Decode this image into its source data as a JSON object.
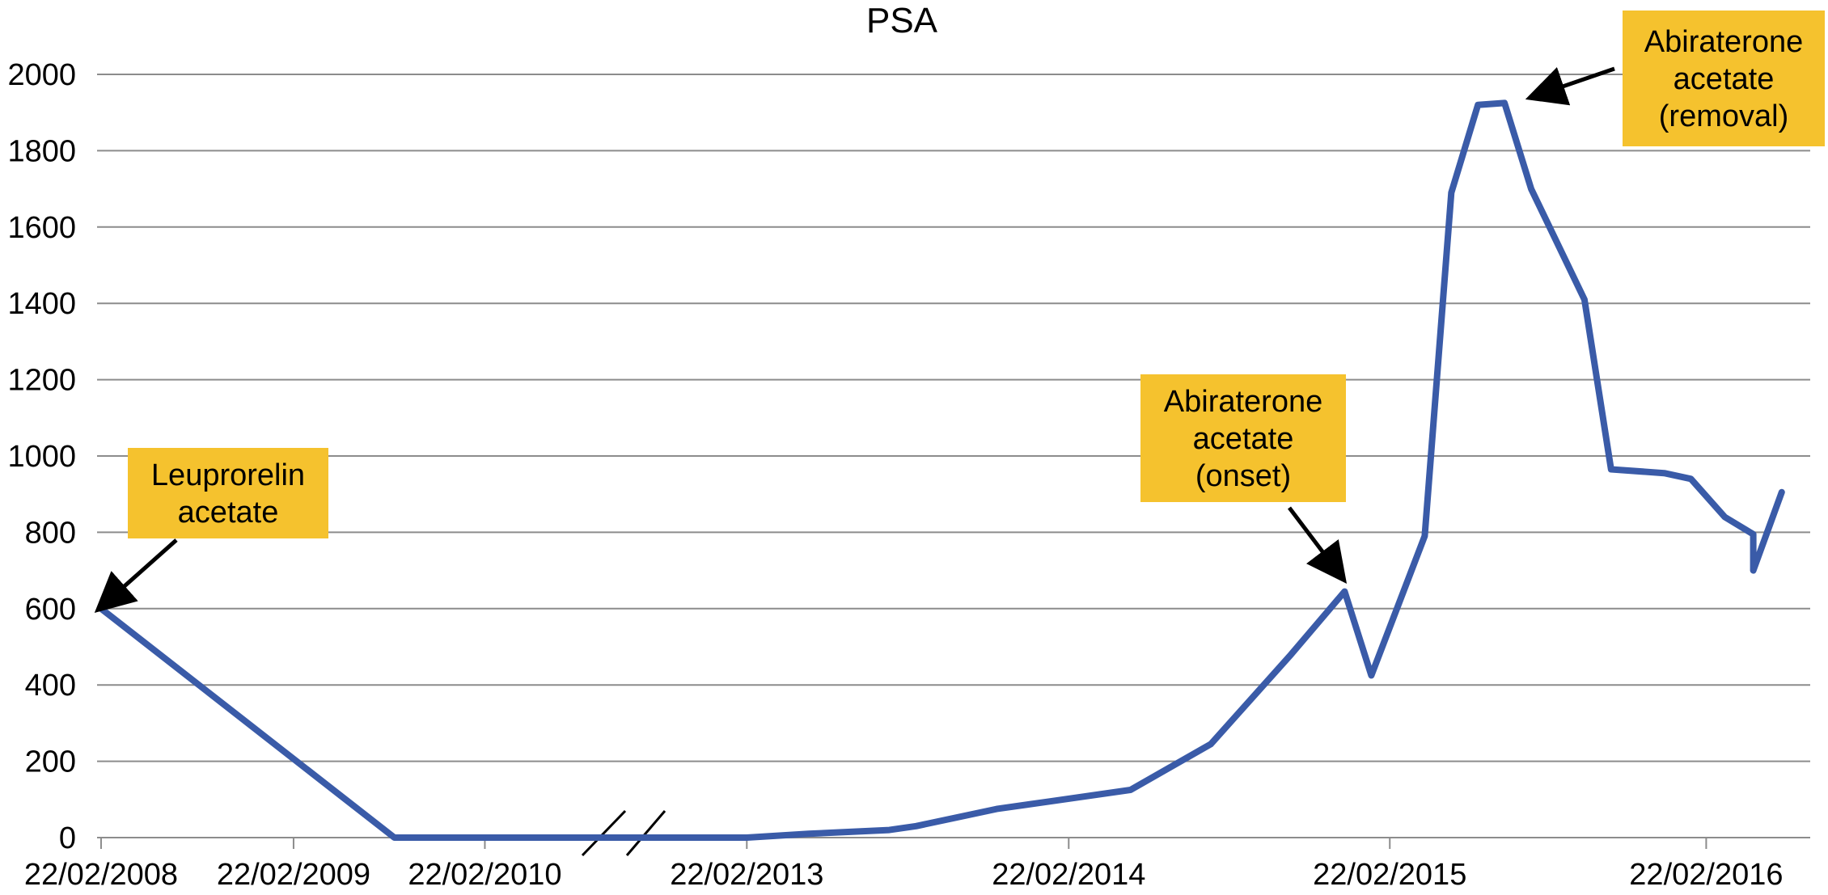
{
  "chart_data": {
    "type": "line",
    "title": "PSA",
    "xlabel": "",
    "ylabel": "",
    "ylim": [
      0,
      2000
    ],
    "yticks": [
      "0",
      "200",
      "400",
      "600",
      "800",
      "1000",
      "1200",
      "1400",
      "1600",
      "1800",
      "2000"
    ],
    "xticks": [
      "22/02/2008",
      "22/02/2009",
      "22/02/2010",
      "22/02/2013",
      "22/02/2014",
      "22/02/2015",
      "22/02/2016"
    ],
    "axis_break": "between 22/02/2010 and 22/02/2013",
    "grid": "horizontal",
    "line_color": "#3a5ba8",
    "annotation_color": "#f5c22e",
    "series": [
      {
        "values": [
          {
            "x": "22/02/2008",
            "y": 600
          },
          {
            "x": "2009-09",
            "y": 0
          },
          {
            "x": "22/02/2010",
            "y": 0
          },
          {
            "x": "2010-11",
            "y": 0
          },
          {
            "x": "22/02/2013",
            "y": 0
          },
          {
            "x": "2013-05",
            "y": 10
          },
          {
            "x": "2013-08",
            "y": 20
          },
          {
            "x": "2013-09",
            "y": 30
          },
          {
            "x": "2013-12",
            "y": 75
          },
          {
            "x": "2014-02",
            "y": 95
          },
          {
            "x": "2014-05",
            "y": 125
          },
          {
            "x": "2014-08",
            "y": 245
          },
          {
            "x": "2014-11",
            "y": 480
          },
          {
            "x": "2015-01",
            "y": 645
          },
          {
            "x": "2015-02",
            "y": 425
          },
          {
            "x": "2015-04",
            "y": 790
          },
          {
            "x": "2015-05",
            "y": 1690
          },
          {
            "x": "2015-06",
            "y": 1920
          },
          {
            "x": "2015-07",
            "y": 1925
          },
          {
            "x": "2015-08",
            "y": 1700
          },
          {
            "x": "2015-10",
            "y": 1410
          },
          {
            "x": "2015-11",
            "y": 965
          },
          {
            "x": "2016-01",
            "y": 955
          },
          {
            "x": "2016-02",
            "y": 940
          },
          {
            "x": "2016-04",
            "y": 840
          },
          {
            "x": "2016-06",
            "y": 795
          },
          {
            "x": "2016-06",
            "y": 700
          },
          {
            "x": "2016-08",
            "y": 905
          }
        ]
      }
    ],
    "annotations": [
      {
        "lines": [
          "Leuprorelin",
          "acetate"
        ],
        "points_to": {
          "x": "22/02/2008",
          "y": 600
        }
      },
      {
        "lines": [
          "Abiraterone",
          "acetate",
          "(onset)"
        ],
        "points_to": {
          "x": "2015-01",
          "y": 645
        }
      },
      {
        "lines": [
          "Abiraterone",
          "acetate",
          "(removal)"
        ],
        "points_to": {
          "x": "2015-07",
          "y": 1925
        }
      }
    ]
  }
}
